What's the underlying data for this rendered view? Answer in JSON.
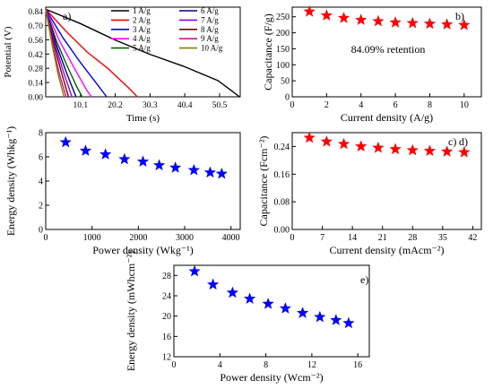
{
  "chart_data": [
    {
      "panel_label": "a)",
      "type": "line",
      "xlabel": "Time (s)",
      "ylabel": "Potential (V)",
      "xlim": [
        0,
        56.5
      ],
      "ylim": [
        0,
        0.88
      ],
      "xticks": [
        10.1,
        20.2,
        30.3,
        40.4,
        50.5
      ],
      "yticks": [
        0.0,
        0.14,
        0.28,
        0.42,
        0.56,
        0.7,
        0.84
      ],
      "xtick_labels": [
        "10.1",
        "20.2",
        "30.3",
        "40.4",
        "50.5"
      ],
      "ytick_labels": [
        "0.00",
        "0.14",
        "0.28",
        "0.42",
        "0.56",
        "0.70",
        "0.84"
      ],
      "legend_position": "top-right",
      "series": [
        {
          "name": "1 A/g",
          "color": "#000000",
          "x": [
            0,
            10,
            20,
            30,
            40,
            50,
            56.3
          ],
          "values": [
            0.86,
            0.72,
            0.56,
            0.42,
            0.3,
            0.16,
            0.0
          ]
        },
        {
          "name": "2 A/g",
          "color": "#ff0000",
          "x": [
            0,
            6,
            12,
            18,
            24,
            26.6
          ],
          "values": [
            0.86,
            0.64,
            0.44,
            0.28,
            0.09,
            0.0
          ]
        },
        {
          "name": "3 A/g",
          "color": "#0000ff",
          "x": [
            0,
            5,
            10,
            15,
            17.7
          ],
          "values": [
            0.86,
            0.58,
            0.34,
            0.12,
            0.0
          ]
        },
        {
          "name": "4 A/g",
          "color": "#ff00ff",
          "x": [
            0,
            4,
            8,
            12,
            13.3
          ],
          "values": [
            0.86,
            0.55,
            0.3,
            0.06,
            0.0
          ]
        },
        {
          "name": "5 A/g",
          "color": "#006400",
          "x": [
            0,
            3,
            6,
            9,
            10.6
          ],
          "values": [
            0.86,
            0.56,
            0.32,
            0.1,
            0.0
          ]
        },
        {
          "name": "6 A/g",
          "color": "#000080",
          "x": [
            0,
            3,
            6,
            8.8
          ],
          "values": [
            0.86,
            0.52,
            0.24,
            0.0
          ]
        },
        {
          "name": "7 A/g",
          "color": "#8b00ff",
          "x": [
            0,
            2.5,
            5,
            7.6
          ],
          "values": [
            0.86,
            0.54,
            0.26,
            0.0
          ]
        },
        {
          "name": "8 A/g",
          "color": "#7f0000",
          "x": [
            0,
            2.2,
            4.4,
            6.6
          ],
          "values": [
            0.86,
            0.54,
            0.26,
            0.0
          ]
        },
        {
          "name": "9 A/g",
          "color": "#c71585",
          "x": [
            0,
            2,
            4,
            5.9
          ],
          "values": [
            0.86,
            0.52,
            0.22,
            0.0
          ]
        },
        {
          "name": "10 A/g",
          "color": "#808000",
          "x": [
            0,
            1.8,
            3.6,
            5.3
          ],
          "values": [
            0.86,
            0.52,
            0.22,
            0.0
          ]
        }
      ]
    },
    {
      "panel_label": "b)",
      "type": "scatter",
      "xlabel": "Current density (A/g)",
      "ylabel": "Capacitance (F/g)",
      "xlim": [
        0,
        11
      ],
      "ylim": [
        0,
        280
      ],
      "xticks": [
        0,
        2,
        4,
        6,
        8,
        10
      ],
      "yticks": [
        0,
        50,
        100,
        150,
        200,
        250
      ],
      "annotation": "84.09% retention",
      "marker_color": "#ff0000",
      "x": [
        1,
        2,
        3,
        4,
        5,
        6,
        7,
        8,
        9,
        10
      ],
      "values": [
        266,
        254,
        246,
        240,
        236,
        232,
        230,
        228,
        226,
        224
      ]
    },
    {
      "panel_label": "c)",
      "type": "scatter",
      "xlabel": "Power density (Wkg⁻¹)",
      "ylabel": "Energy density (Whkg⁻¹)",
      "xlim": [
        0,
        4200
      ],
      "ylim": [
        0,
        8
      ],
      "xticks": [
        0,
        1000,
        2000,
        3000,
        4000
      ],
      "yticks": [
        0,
        2,
        4,
        6,
        8
      ],
      "marker_color": "#0000ff",
      "x": [
        430,
        860,
        1290,
        1700,
        2100,
        2450,
        2800,
        3200,
        3550,
        3800
      ],
      "values": [
        7.2,
        6.5,
        6.2,
        5.8,
        5.6,
        5.3,
        5.1,
        4.9,
        4.7,
        4.6
      ]
    },
    {
      "panel_label": "d)",
      "type": "scatter",
      "xlabel": "Current density (mAcm⁻²)",
      "ylabel": "Capacitance (Fcm⁻²)",
      "xlim": [
        0,
        44
      ],
      "ylim": [
        0,
        0.28
      ],
      "xticks": [
        0,
        7,
        14,
        21,
        28,
        35,
        42
      ],
      "yticks": [
        0.0,
        0.08,
        0.16,
        0.24
      ],
      "ytick_labels": [
        "0.00",
        "0.08",
        "0.16",
        "0.24"
      ],
      "marker_color": "#ff0000",
      "x": [
        4,
        8,
        12,
        16,
        20,
        24,
        28,
        32,
        36,
        40
      ],
      "values": [
        0.265,
        0.254,
        0.247,
        0.24,
        0.236,
        0.232,
        0.229,
        0.227,
        0.225,
        0.223
      ]
    },
    {
      "panel_label": "e)",
      "type": "scatter",
      "xlabel": "Power density (Wcm⁻²)",
      "ylabel": "Energy density (mWhcm⁻²)",
      "xlim": [
        0,
        17
      ],
      "ylim": [
        12,
        30
      ],
      "xticks": [
        0,
        4,
        8,
        12,
        16
      ],
      "yticks": [
        12,
        16,
        20,
        24,
        28
      ],
      "marker_color": "#0000ff",
      "x": [
        1.8,
        3.4,
        5.1,
        6.6,
        8.2,
        9.7,
        11.2,
        12.7,
        14.1,
        15.2
      ],
      "values": [
        28.8,
        26.2,
        24.6,
        23.4,
        22.4,
        21.5,
        20.6,
        19.8,
        19.2,
        18.6
      ]
    }
  ]
}
